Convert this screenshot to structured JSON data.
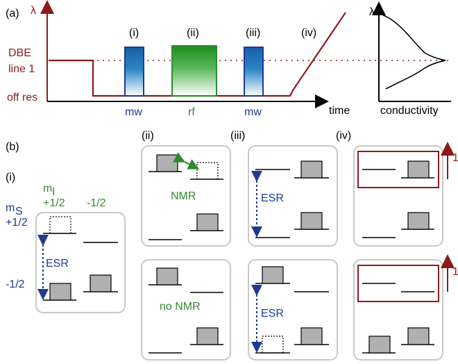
{
  "panel_a": {
    "label": "(a)",
    "lambda": "λ",
    "y_labels": {
      "dbe1": "DBE",
      "dbe2": "line 1",
      "offres": "off res"
    },
    "time_label": "time",
    "steps": [
      "(i)",
      "(ii)",
      "(iii)",
      "(iv)"
    ],
    "pulses": [
      "mw",
      "rf",
      "mw"
    ],
    "inset": {
      "lambda": "λ",
      "xlabel": "conductivity"
    }
  },
  "panel_b": {
    "label": "(b)",
    "columns": [
      "(i)",
      "(ii)",
      "(iii)",
      "(iv)"
    ],
    "mI_label": "m",
    "mI_sub": "I",
    "mI_plus": "+1/2",
    "mI_minus": "-1/2",
    "mS_label": "m",
    "mS_sub": "S",
    "mS_plus": "+1/2",
    "mS_minus": "-1/2",
    "esr": "ESR",
    "nmr": "NMR",
    "no_nmr": "no NMR",
    "one": "1"
  },
  "colors": {
    "red": "#8b1a1a",
    "blue": "#1f3a93",
    "green": "#2e8b2e",
    "panel_border": "#c8c8c8"
  }
}
